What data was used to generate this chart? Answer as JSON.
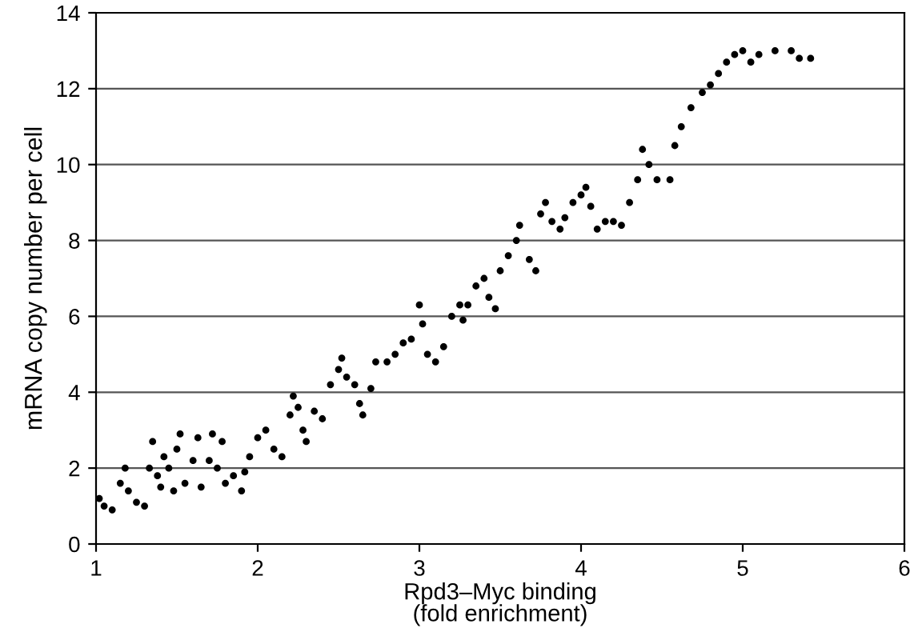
{
  "chart_data": {
    "type": "scatter",
    "xlabel": "Rpd3–Myc binding\n(fold enrichment)",
    "ylabel": "mRNA copy number per cell",
    "x": [
      1.02,
      1.05,
      1.1,
      1.15,
      1.18,
      1.2,
      1.25,
      1.3,
      1.33,
      1.35,
      1.38,
      1.4,
      1.42,
      1.45,
      1.48,
      1.5,
      1.52,
      1.55,
      1.6,
      1.63,
      1.65,
      1.7,
      1.72,
      1.75,
      1.78,
      1.8,
      1.85,
      1.9,
      1.92,
      1.95,
      2.0,
      2.05,
      2.1,
      2.15,
      2.2,
      2.22,
      2.25,
      2.28,
      2.3,
      2.35,
      2.4,
      2.45,
      2.5,
      2.52,
      2.55,
      2.6,
      2.63,
      2.65,
      2.7,
      2.73,
      2.8,
      2.85,
      2.9,
      2.95,
      3.0,
      3.02,
      3.05,
      3.1,
      3.15,
      3.2,
      3.25,
      3.27,
      3.3,
      3.35,
      3.4,
      3.43,
      3.47,
      3.5,
      3.55,
      3.6,
      3.62,
      3.68,
      3.72,
      3.75,
      3.78,
      3.82,
      3.87,
      3.9,
      3.95,
      4.0,
      4.03,
      4.06,
      4.1,
      4.15,
      4.2,
      4.25,
      4.3,
      4.35,
      4.38,
      4.42,
      4.47,
      4.55,
      4.58,
      4.62,
      4.68,
      4.75,
      4.8,
      4.85,
      4.9,
      4.95,
      5.0,
      5.05,
      5.1,
      5.2,
      5.3,
      5.35,
      5.42
    ],
    "values": [
      1.2,
      1.0,
      0.9,
      1.6,
      2.0,
      1.4,
      1.1,
      1.0,
      2.0,
      2.7,
      1.8,
      1.5,
      2.3,
      2.0,
      1.4,
      2.5,
      2.9,
      1.6,
      2.2,
      2.8,
      1.5,
      2.2,
      2.9,
      2.0,
      2.7,
      1.6,
      1.8,
      1.4,
      1.9,
      2.3,
      2.8,
      3.0,
      2.5,
      2.3,
      3.4,
      3.9,
      3.6,
      3.0,
      2.7,
      3.5,
      3.3,
      4.2,
      4.6,
      4.9,
      4.4,
      4.2,
      3.7,
      3.4,
      4.1,
      4.8,
      4.8,
      5.0,
      5.3,
      5.4,
      6.3,
      5.8,
      5.0,
      4.8,
      5.2,
      6.0,
      6.3,
      5.9,
      6.3,
      6.8,
      7.0,
      6.5,
      6.2,
      7.2,
      7.6,
      8.0,
      8.4,
      7.5,
      7.2,
      8.7,
      9.0,
      8.5,
      8.3,
      8.6,
      9.0,
      9.2,
      9.4,
      8.9,
      8.3,
      8.5,
      8.5,
      8.4,
      9.0,
      9.6,
      10.4,
      10.0,
      9.6,
      9.6,
      10.5,
      11.0,
      11.5,
      11.9,
      12.1,
      12.4,
      12.7,
      12.9,
      13.0,
      12.7,
      12.9,
      13.0,
      13.0,
      12.8,
      12.8
    ],
    "color": "#000000",
    "marker": "circle",
    "xlim": [
      1,
      6
    ],
    "xticks": [
      1,
      2,
      3,
      4,
      5,
      6
    ],
    "ylim": [
      0,
      14
    ],
    "yticks": [
      0,
      2,
      4,
      6,
      8,
      10,
      12,
      14
    ],
    "grid": "y"
  }
}
